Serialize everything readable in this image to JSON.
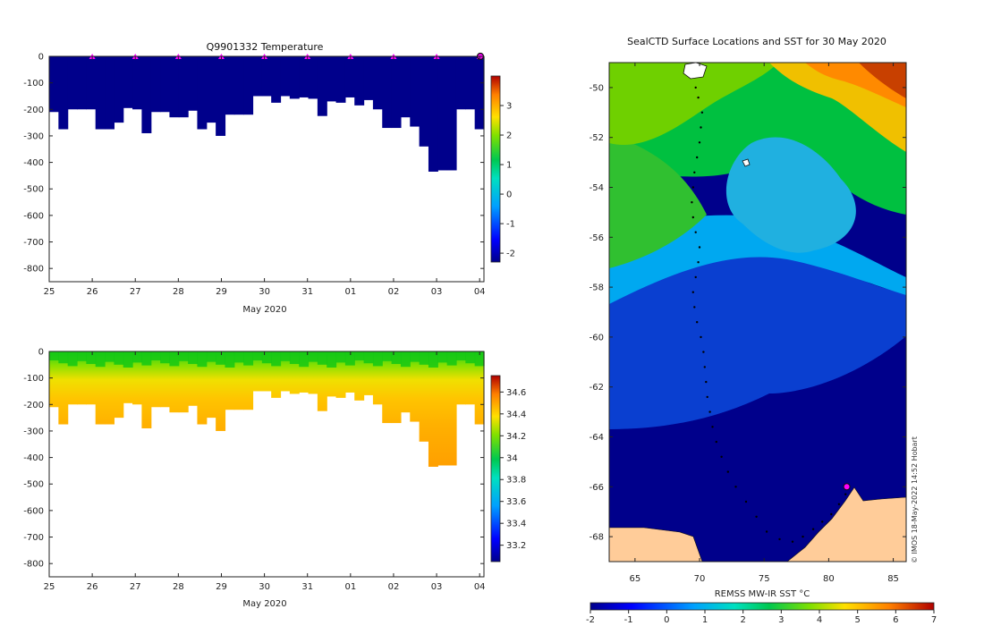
{
  "colors": {
    "navy": "#00008b",
    "land": "#ffcc99",
    "frame": "#222222",
    "marker": "#ff00ff"
  },
  "chart_data": [
    {
      "type": "heatmap",
      "variable": "temperature",
      "title": "Q9901332  Temperature",
      "xlabel": "May 2020",
      "x_ticks": [
        "25",
        "26",
        "27",
        "28",
        "29",
        "30",
        "31",
        "01",
        "02",
        "03",
        "04"
      ],
      "y_ticks": [
        "0",
        "-100",
        "-200",
        "-300",
        "-400",
        "-500",
        "-600",
        "-700",
        "-800"
      ],
      "ylim": [
        -850,
        0
      ],
      "x_range_days": [
        0,
        10.1
      ],
      "profile_max_depths": [
        210,
        275,
        200,
        200,
        200,
        275,
        275,
        250,
        195,
        200,
        290,
        210,
        210,
        230,
        230,
        205,
        275,
        250,
        300,
        220,
        220,
        220,
        150,
        150,
        175,
        150,
        160,
        155,
        160,
        225,
        170,
        175,
        155,
        185,
        165,
        200,
        270,
        270,
        230,
        265,
        340,
        435,
        430,
        430,
        200,
        200,
        275
      ],
      "profile_markers_day": [
        1,
        2,
        3,
        4,
        5,
        6,
        7,
        8,
        9,
        10
      ],
      "colorbar": {
        "ticks": [
          "3",
          "2",
          "1",
          "0",
          "-1",
          "-2"
        ],
        "range": [
          -2.3,
          4
        ]
      }
    },
    {
      "type": "heatmap",
      "variable": "salinity",
      "title": "",
      "xlabel": "May 2020",
      "x_ticks": [
        "25",
        "26",
        "27",
        "28",
        "29",
        "30",
        "31",
        "01",
        "02",
        "03",
        "04"
      ],
      "y_ticks": [
        "0",
        "-100",
        "-200",
        "-300",
        "-400",
        "-500",
        "-600",
        "-700",
        "-800"
      ],
      "ylim": [
        -850,
        0
      ],
      "x_range_days": [
        0,
        10.1
      ],
      "profile_max_depths": [
        210,
        275,
        200,
        200,
        200,
        275,
        275,
        250,
        195,
        200,
        290,
        210,
        210,
        230,
        230,
        205,
        275,
        250,
        300,
        220,
        220,
        220,
        150,
        150,
        175,
        150,
        160,
        155,
        160,
        225,
        170,
        175,
        155,
        185,
        165,
        200,
        270,
        270,
        230,
        265,
        340,
        435,
        430,
        430,
        200,
        200,
        275
      ],
      "colorbar": {
        "ticks": [
          "34.6",
          "34.4",
          "34.2",
          "34",
          "33.8",
          "33.6",
          "33.4",
          "33.2"
        ],
        "range": [
          33.05,
          34.75
        ]
      }
    },
    {
      "type": "heatmap",
      "variable": "sst_map",
      "title": "SealCTD Surface Locations and SST for 30 May 2020",
      "x_ticks": [
        "65",
        "70",
        "75",
        "80",
        "85"
      ],
      "y_ticks": [
        "-50",
        "-52",
        "-54",
        "-56",
        "-58",
        "-60",
        "-62",
        "-64",
        "-66",
        "-68"
      ],
      "lon_range": [
        63,
        86
      ],
      "lat_range": [
        -69,
        -49
      ],
      "colorbar": {
        "label": "REMSS MW-IR SST °C",
        "ticks": [
          "-2",
          "-1",
          "0",
          "1",
          "2",
          "3",
          "4",
          "5",
          "6",
          "7"
        ],
        "range": [
          -2,
          7
        ]
      },
      "track": [
        [
          69.7,
          -50.0
        ],
        [
          69.9,
          -50.4
        ],
        [
          70.2,
          -51.0
        ],
        [
          70.1,
          -51.6
        ],
        [
          70.0,
          -52.2
        ],
        [
          69.8,
          -52.8
        ],
        [
          69.6,
          -53.4
        ],
        [
          69.5,
          -54.0
        ],
        [
          69.4,
          -54.6
        ],
        [
          69.5,
          -55.2
        ],
        [
          69.7,
          -55.8
        ],
        [
          70.0,
          -56.4
        ],
        [
          69.9,
          -57.0
        ],
        [
          69.7,
          -57.6
        ],
        [
          69.5,
          -58.2
        ],
        [
          69.6,
          -58.8
        ],
        [
          69.8,
          -59.4
        ],
        [
          70.1,
          -60.0
        ],
        [
          70.3,
          -60.6
        ],
        [
          70.4,
          -61.2
        ],
        [
          70.5,
          -61.8
        ],
        [
          70.6,
          -62.4
        ],
        [
          70.8,
          -63.0
        ],
        [
          71.0,
          -63.6
        ],
        [
          71.3,
          -64.2
        ],
        [
          71.7,
          -64.8
        ],
        [
          72.2,
          -65.4
        ],
        [
          72.8,
          -66.0
        ],
        [
          73.6,
          -66.6
        ],
        [
          74.4,
          -67.2
        ],
        [
          75.2,
          -67.8
        ],
        [
          76.2,
          -68.1
        ],
        [
          77.2,
          -68.2
        ],
        [
          78.0,
          -68.0
        ],
        [
          78.8,
          -67.7
        ],
        [
          79.5,
          -67.4
        ],
        [
          80.2,
          -67.1
        ],
        [
          80.8,
          -66.7
        ],
        [
          81.3,
          -66.3
        ],
        [
          81.4,
          -66.0
        ]
      ],
      "latest_position": [
        81.4,
        -66.0
      ],
      "credit": "© IMOS 18-May-2022 14:52 Hobart"
    }
  ]
}
